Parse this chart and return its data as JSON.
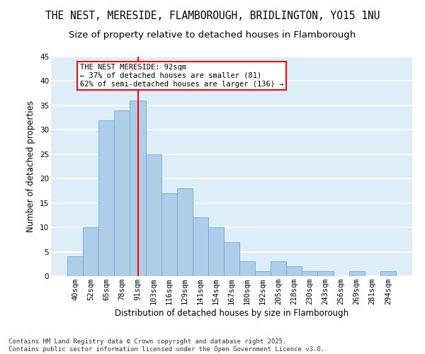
{
  "title": "THE NEST, MERESIDE, FLAMBOROUGH, BRIDLINGTON, YO15 1NU",
  "subtitle": "Size of property relative to detached houses in Flamborough",
  "xlabel": "Distribution of detached houses by size in Flamborough",
  "ylabel": "Number of detached properties",
  "categories": [
    "40sqm",
    "52sqm",
    "65sqm",
    "78sqm",
    "91sqm",
    "103sqm",
    "116sqm",
    "129sqm",
    "141sqm",
    "154sqm",
    "167sqm",
    "180sqm",
    "192sqm",
    "205sqm",
    "218sqm",
    "230sqm",
    "243sqm",
    "256sqm",
    "269sqm",
    "281sqm",
    "294sqm"
  ],
  "values": [
    4,
    10,
    32,
    34,
    36,
    25,
    17,
    18,
    12,
    10,
    7,
    3,
    1,
    3,
    2,
    1,
    1,
    0,
    1,
    0,
    1
  ],
  "bar_color": "#aecde8",
  "bar_edge_color": "#6aaad4",
  "background_color": "#ddeef8",
  "grid_color": "#ffffff",
  "vline_color": "red",
  "vline_x_index": 4,
  "annotation_text": "THE NEST MERESIDE: 92sqm\n← 37% of detached houses are smaller (81)\n62% of semi-detached houses are larger (136) →",
  "annotation_box_color": "white",
  "annotation_box_edge": "red",
  "ylim": [
    0,
    45
  ],
  "yticks": [
    0,
    5,
    10,
    15,
    20,
    25,
    30,
    35,
    40,
    45
  ],
  "footer": "Contains HM Land Registry data © Crown copyright and database right 2025.\nContains public sector information licensed under the Open Government Licence v3.0.",
  "title_fontsize": 10.5,
  "subtitle_fontsize": 9.5,
  "axis_label_fontsize": 8.5,
  "tick_fontsize": 7.5,
  "annotation_fontsize": 7.5,
  "footer_fontsize": 6.5
}
